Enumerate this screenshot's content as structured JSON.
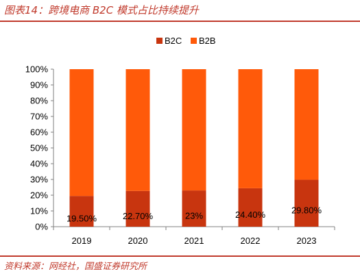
{
  "header": {
    "title": "图表14：跨境电商 B2C 模式占比持续提升"
  },
  "footer": {
    "source": "资料来源：网经社，国盛证券研究所"
  },
  "colors": {
    "B2C": "#c8350f",
    "B2B": "#ff5a0a",
    "accent": "#c0392b"
  },
  "chart_data": {
    "type": "bar",
    "stacked": true,
    "percent": true,
    "categories": [
      "2019",
      "2020",
      "2021",
      "2022",
      "2023"
    ],
    "series": [
      {
        "name": "B2C",
        "values": [
          19.5,
          22.7,
          23.0,
          24.4,
          29.8
        ]
      },
      {
        "name": "B2B",
        "values": [
          80.5,
          77.3,
          77.0,
          75.6,
          70.2
        ]
      }
    ],
    "data_labels": [
      "19.50%",
      "22.70%",
      "23%",
      "24.40%",
      "29.80%"
    ],
    "yticks": [
      "0%",
      "10%",
      "20%",
      "30%",
      "40%",
      "50%",
      "60%",
      "70%",
      "80%",
      "90%",
      "100%"
    ],
    "ylim": [
      0,
      100
    ],
    "legend_position": "top-center",
    "grid": false
  }
}
